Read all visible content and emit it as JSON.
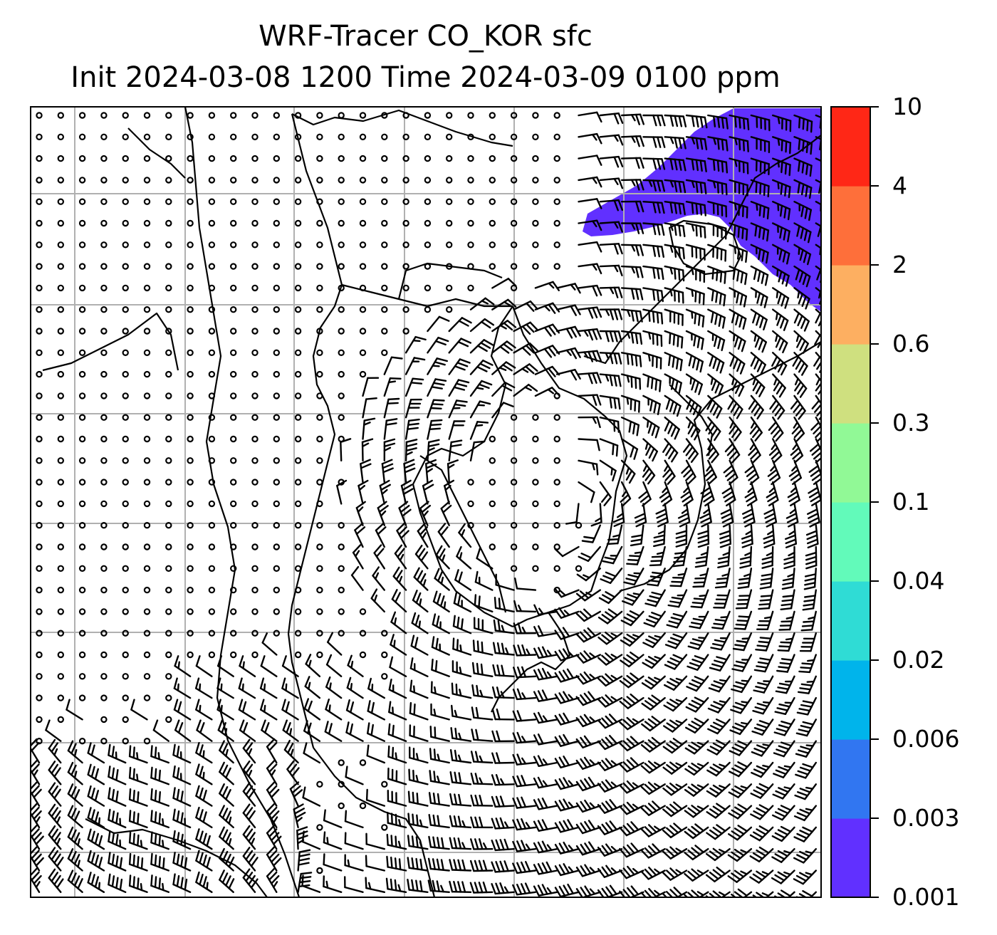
{
  "title": {
    "line1": "WRF-Tracer CO_KOR sfc",
    "line2": "Init 2024-03-08 1200 Time 2024-03-09 0100 ppm"
  },
  "colorbar": {
    "labels": [
      "0.001",
      "0.003",
      "0.006",
      "0.02",
      "0.04",
      "0.1",
      "0.3",
      "0.6",
      "2",
      "4",
      "10"
    ],
    "colors": [
      "#6130ff",
      "#3176f1",
      "#00b4eb",
      "#2fdcd5",
      "#62faba",
      "#91f996",
      "#cfe07f",
      "#fdaf61",
      "#fe6f3a",
      "#ff2716"
    ]
  },
  "map": {
    "plume_color": "#6130ff",
    "gridline_color": "#b0b0b0"
  }
}
